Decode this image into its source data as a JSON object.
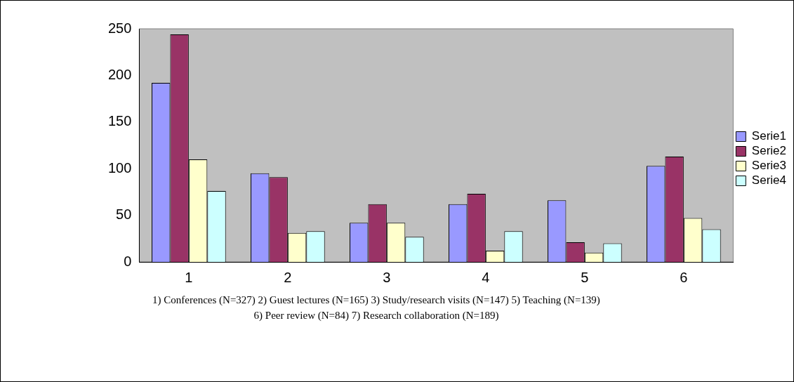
{
  "chart_data": {
    "type": "bar",
    "categories": [
      "1",
      "2",
      "3",
      "4",
      "5",
      "6"
    ],
    "series": [
      {
        "name": "Serie1",
        "color": "#9999ff",
        "values": [
          192,
          95,
          42,
          62,
          66,
          103
        ]
      },
      {
        "name": "Serie2",
        "color": "#993366",
        "values": [
          244,
          91,
          62,
          73,
          21,
          113
        ]
      },
      {
        "name": "Serie3",
        "color": "#ffffcc",
        "values": [
          110,
          31,
          42,
          12,
          10,
          47
        ]
      },
      {
        "name": "Serie4",
        "color": "#ccffff",
        "values": [
          76,
          33,
          27,
          33,
          20,
          35
        ]
      }
    ],
    "ylim": [
      0,
      250
    ],
    "yticks": [
      0,
      50,
      100,
      150,
      200,
      250
    ],
    "grid": false,
    "legend": "right",
    "annotations": [
      "1) Conferences (N=327) 2) Guest lectures (N=165) 3) Study/research visits (N=147) 5) Teaching (N=139) 6) Peer review (N=84) 7) Research collaboration (N=189)"
    ]
  }
}
